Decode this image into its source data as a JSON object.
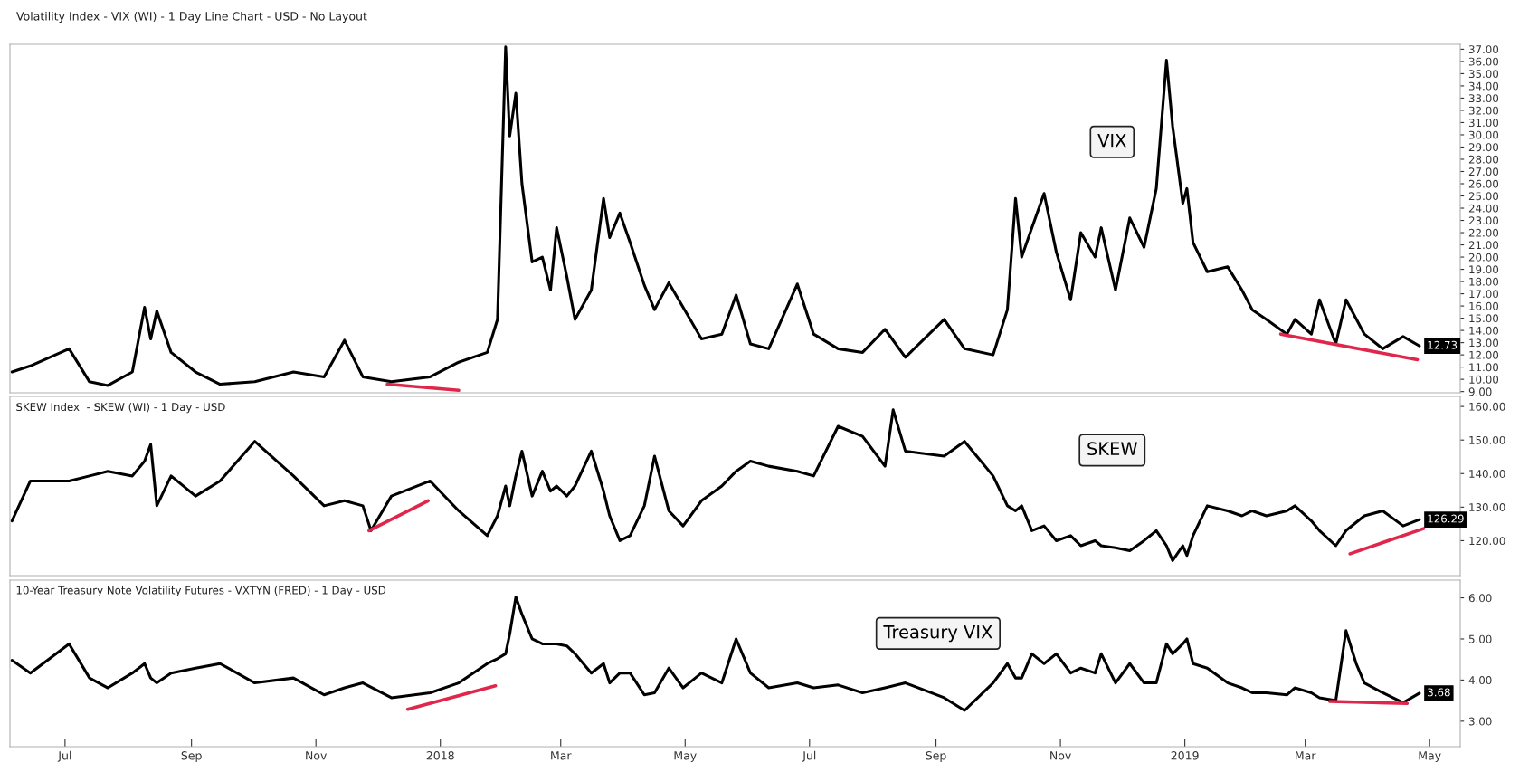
{
  "chart_data": [
    {
      "type": "line",
      "title": "Volatility Index - VIX (WI) - 1 Day Line Chart - USD - No Layout",
      "annotations": [
        "VIX"
      ],
      "xlim": [
        "2017-06-04",
        "2019-05-16"
      ],
      "ylim": [
        8.9,
        37.4
      ],
      "yticks": [
        {
          "value": 9,
          "label": "9.00"
        },
        {
          "value": 10,
          "label": "10.00"
        },
        {
          "value": 11,
          "label": "11.00"
        },
        {
          "value": 12,
          "label": "12.00"
        },
        {
          "value": 13,
          "label": "13.00"
        },
        {
          "value": 14,
          "label": "14.00"
        },
        {
          "value": 15,
          "label": "15.00"
        },
        {
          "value": 16,
          "label": "16.00"
        },
        {
          "value": 17,
          "label": "17.00"
        },
        {
          "value": 18,
          "label": "18.00"
        },
        {
          "value": 19,
          "label": "19.00"
        },
        {
          "value": 20,
          "label": "20.00"
        },
        {
          "value": 21,
          "label": "21.00"
        },
        {
          "value": 22,
          "label": "22.00"
        },
        {
          "value": 23,
          "label": "23.00"
        },
        {
          "value": 24,
          "label": "24.00"
        },
        {
          "value": 25,
          "label": "25.00"
        },
        {
          "value": 26,
          "label": "26.00"
        },
        {
          "value": 27,
          "label": "27.00"
        },
        {
          "value": 28,
          "label": "28.00"
        },
        {
          "value": 29,
          "label": "29.00"
        },
        {
          "value": 30,
          "label": "30.00"
        },
        {
          "value": 31,
          "label": "31.00"
        },
        {
          "value": 32,
          "label": "32.00"
        },
        {
          "value": 33,
          "label": "33.00"
        },
        {
          "value": 34,
          "label": "34.00"
        },
        {
          "value": 35,
          "label": "35.00"
        },
        {
          "value": 36,
          "label": "36.00"
        },
        {
          "value": 37,
          "label": "37.00"
        }
      ],
      "tick_labels": "y",
      "line_style": "solid",
      "x": [
        "2017-06-05",
        "2017-06-14",
        "2017-07-03",
        "2017-07-13",
        "2017-07-22",
        "2017-08-03",
        "2017-08-09",
        "2017-08-12",
        "2017-08-15",
        "2017-08-22",
        "2017-09-03",
        "2017-09-15",
        "2017-10-02",
        "2017-10-21",
        "2017-11-05",
        "2017-11-15",
        "2017-11-24",
        "2017-12-08",
        "2017-12-27",
        "2018-01-10",
        "2018-01-24",
        "2018-01-29",
        "2018-02-02",
        "2018-02-04",
        "2018-02-07",
        "2018-02-10",
        "2018-02-15",
        "2018-02-20",
        "2018-02-24",
        "2018-02-27",
        "2018-03-04",
        "2018-03-08",
        "2018-03-16",
        "2018-03-22",
        "2018-03-25",
        "2018-03-30",
        "2018-04-04",
        "2018-04-11",
        "2018-04-16",
        "2018-04-23",
        "2018-04-30",
        "2018-05-09",
        "2018-05-19",
        "2018-05-26",
        "2018-06-02",
        "2018-06-11",
        "2018-06-25",
        "2018-07-03",
        "2018-07-15",
        "2018-07-27",
        "2018-08-07",
        "2018-08-17",
        "2018-09-05",
        "2018-09-15",
        "2018-09-29",
        "2018-10-06",
        "2018-10-10",
        "2018-10-13",
        "2018-10-18",
        "2018-10-24",
        "2018-10-30",
        "2018-11-06",
        "2018-11-11",
        "2018-11-18",
        "2018-11-21",
        "2018-11-28",
        "2018-12-05",
        "2018-12-12",
        "2018-12-18",
        "2018-12-23",
        "2018-12-26",
        "2018-12-31",
        "2019-01-02",
        "2019-01-05",
        "2019-01-12",
        "2019-01-22",
        "2019-01-29",
        "2019-02-03",
        "2019-02-10",
        "2019-02-20",
        "2019-02-24",
        "2019-03-04",
        "2019-03-08",
        "2019-03-16",
        "2019-03-21",
        "2019-03-30",
        "2019-04-08",
        "2019-04-18",
        "2019-04-26"
      ],
      "series": [
        {
          "color": "#000000",
          "values": [
            10.6,
            11.1,
            12.5,
            9.8,
            9.5,
            10.6,
            15.9,
            13.3,
            15.6,
            12.2,
            10.6,
            9.6,
            9.8,
            10.6,
            10.2,
            13.2,
            10.2,
            9.8,
            10.2,
            11.4,
            12.2,
            14.9,
            37.2,
            29.9,
            33.4,
            26.0,
            19.6,
            20.0,
            17.3,
            22.4,
            18.4,
            14.9,
            17.3,
            24.8,
            21.6,
            23.6,
            21.2,
            17.7,
            15.7,
            17.9,
            15.9,
            13.3,
            13.7,
            16.9,
            12.9,
            12.5,
            17.8,
            13.7,
            12.5,
            12.2,
            14.1,
            11.8,
            14.9,
            12.5,
            12.0,
            15.7,
            24.8,
            20.0,
            22.4,
            25.2,
            20.4,
            16.5,
            22.0,
            20.0,
            22.4,
            17.3,
            23.2,
            20.8,
            25.6,
            36.1,
            30.7,
            24.4,
            25.6,
            21.2,
            18.8,
            19.2,
            17.3,
            15.7,
            14.9,
            13.7,
            14.9,
            13.7,
            16.5,
            12.9,
            16.5,
            13.7,
            12.5,
            13.5,
            12.73
          ],
          "value_labels": [
            null,
            null,
            null,
            null,
            null,
            null,
            null,
            null,
            null,
            null,
            null,
            null,
            null,
            null,
            null,
            null,
            null,
            null,
            null,
            null,
            null,
            null,
            null,
            null,
            null,
            null,
            null,
            null,
            null,
            null,
            null,
            null,
            null,
            null,
            null,
            null,
            null,
            null,
            null,
            null,
            null,
            null,
            null,
            null,
            null,
            null,
            null,
            null,
            null,
            null,
            null,
            null,
            null,
            null,
            null,
            null,
            null,
            null,
            null,
            null,
            null,
            null,
            null,
            null,
            null,
            null,
            null,
            null,
            null,
            null,
            null,
            null,
            null,
            null,
            null,
            null,
            null,
            null,
            null,
            null,
            null,
            null,
            null,
            null,
            null,
            null,
            null,
            null,
            "12.73"
          ]
        },
        {
          "type": "line",
          "color": "#e0264a",
          "x": [
            "2017-12-06",
            "2018-01-10"
          ],
          "values": [
            9.6,
            9.1
          ]
        },
        {
          "type": "line",
          "color": "#e0264a",
          "x": [
            "2019-02-17",
            "2019-04-25"
          ],
          "values": [
            13.7,
            11.6
          ]
        }
      ]
    },
    {
      "type": "line",
      "title": "SKEW Index  - SKEW (WI) - 1 Day - USD",
      "annotations": [
        "SKEW"
      ],
      "xlim": [
        "2017-06-04",
        "2019-05-16"
      ],
      "ylim": [
        109.6,
        163
      ],
      "yticks": [
        {
          "value": 120,
          "label": "120.00"
        },
        {
          "value": 130,
          "label": "130.00"
        },
        {
          "value": 140,
          "label": "140.00"
        },
        {
          "value": 150,
          "label": "150.00"
        },
        {
          "value": 160,
          "label": "160.00"
        }
      ],
      "tick_labels": "y",
      "line_style": "solid",
      "x": [
        "2017-06-05",
        "2017-06-14",
        "2017-07-03",
        "2017-07-13",
        "2017-07-22",
        "2017-08-03",
        "2017-08-09",
        "2017-08-12",
        "2017-08-15",
        "2017-08-22",
        "2017-09-03",
        "2017-09-15",
        "2017-10-02",
        "2017-10-21",
        "2017-11-05",
        "2017-11-15",
        "2017-11-24",
        "2017-11-28",
        "2017-12-08",
        "2017-12-27",
        "2018-01-10",
        "2018-01-24",
        "2018-01-29",
        "2018-02-02",
        "2018-02-04",
        "2018-02-07",
        "2018-02-10",
        "2018-02-15",
        "2018-02-20",
        "2018-02-24",
        "2018-02-27",
        "2018-03-04",
        "2018-03-08",
        "2018-03-16",
        "2018-03-22",
        "2018-03-25",
        "2018-03-30",
        "2018-04-04",
        "2018-04-11",
        "2018-04-16",
        "2018-04-23",
        "2018-04-30",
        "2018-05-09",
        "2018-05-19",
        "2018-05-26",
        "2018-06-02",
        "2018-06-11",
        "2018-06-25",
        "2018-07-03",
        "2018-07-15",
        "2018-07-27",
        "2018-08-07",
        "2018-08-11",
        "2018-08-17",
        "2018-09-05",
        "2018-09-15",
        "2018-09-29",
        "2018-10-06",
        "2018-10-10",
        "2018-10-13",
        "2018-10-18",
        "2018-10-24",
        "2018-10-30",
        "2018-11-06",
        "2018-11-11",
        "2018-11-18",
        "2018-11-21",
        "2018-11-28",
        "2018-12-05",
        "2018-12-12",
        "2018-12-18",
        "2018-12-23",
        "2018-12-26",
        "2018-12-31",
        "2019-01-02",
        "2019-01-05",
        "2019-01-12",
        "2019-01-22",
        "2019-01-29",
        "2019-02-03",
        "2019-02-10",
        "2019-02-20",
        "2019-02-24",
        "2019-03-04",
        "2019-03-08",
        "2019-03-16",
        "2019-03-21",
        "2019-03-30",
        "2019-04-08",
        "2019-04-18",
        "2019-04-26"
      ],
      "series": [
        {
          "color": "#000000",
          "values": [
            125.9,
            137.8,
            137.8,
            139.3,
            140.7,
            139.3,
            143.7,
            148.7,
            130.4,
            139.3,
            133.3,
            137.8,
            149.6,
            139.3,
            130.4,
            131.9,
            130.4,
            123.0,
            133.3,
            137.8,
            128.9,
            121.5,
            127.4,
            136.3,
            130.4,
            139.3,
            146.7,
            133.3,
            140.7,
            134.8,
            136.3,
            133.3,
            136.3,
            146.7,
            134.8,
            127.4,
            120.0,
            121.5,
            130.4,
            145.2,
            128.9,
            124.4,
            131.9,
            136.3,
            140.7,
            143.7,
            142.2,
            140.7,
            139.3,
            154.1,
            151.1,
            142.2,
            159.0,
            146.7,
            145.2,
            149.6,
            139.3,
            130.4,
            128.9,
            130.4,
            123.0,
            124.4,
            120.0,
            121.5,
            118.5,
            120.0,
            118.5,
            117.9,
            117.0,
            120.0,
            123.0,
            118.5,
            114.1,
            118.5,
            115.6,
            121.5,
            130.4,
            128.9,
            127.4,
            128.9,
            127.4,
            128.9,
            130.4,
            125.9,
            123.0,
            118.5,
            123.0,
            127.4,
            128.9,
            124.4,
            126.29
          ],
          "value_labels": [
            null,
            null,
            null,
            null,
            null,
            null,
            null,
            null,
            null,
            null,
            null,
            null,
            null,
            null,
            null,
            null,
            null,
            null,
            null,
            null,
            null,
            null,
            null,
            null,
            null,
            null,
            null,
            null,
            null,
            null,
            null,
            null,
            null,
            null,
            null,
            null,
            null,
            null,
            null,
            null,
            null,
            null,
            null,
            null,
            null,
            null,
            null,
            null,
            null,
            null,
            null,
            null,
            null,
            null,
            null,
            null,
            null,
            null,
            null,
            null,
            null,
            null,
            null,
            null,
            null,
            null,
            null,
            null,
            null,
            null,
            null,
            null,
            null,
            null,
            null,
            null,
            null,
            null,
            null,
            null,
            null,
            null,
            null,
            null,
            null,
            null,
            null,
            null,
            null,
            null,
            "126.29"
          ]
        },
        {
          "type": "line",
          "color": "#e0264a",
          "x": [
            "2017-11-27",
            "2017-12-26"
          ],
          "values": [
            123.0,
            131.9
          ]
        },
        {
          "type": "line",
          "color": "#e0264a",
          "x": [
            "2019-03-23",
            "2019-04-28"
          ],
          "values": [
            116.1,
            123.6
          ]
        }
      ]
    },
    {
      "type": "line",
      "title": "10-Year Treasury Note Volatility Futures - VXTYN (FRED) - 1 Day - USD",
      "annotations": [
        "Treasury VIX"
      ],
      "xlim": [
        "2017-06-04",
        "2019-05-16"
      ],
      "ylim": [
        2.38,
        6.43
      ],
      "yticks": [
        {
          "value": 3,
          "label": "3.00"
        },
        {
          "value": 4,
          "label": "4.00"
        },
        {
          "value": 5,
          "label": "5.00"
        },
        {
          "value": 6,
          "label": "6.00"
        }
      ],
      "xticks": [
        {
          "value": "2017-07-01",
          "label": "Jul"
        },
        {
          "value": "2017-09-01",
          "label": "Sep"
        },
        {
          "value": "2017-11-01",
          "label": "Nov"
        },
        {
          "value": "2018-01-01",
          "label": "2018"
        },
        {
          "value": "2018-03-01",
          "label": "Mar"
        },
        {
          "value": "2018-05-01",
          "label": "May"
        },
        {
          "value": "2018-07-01",
          "label": "Jul"
        },
        {
          "value": "2018-09-01",
          "label": "Sep"
        },
        {
          "value": "2018-11-01",
          "label": "Nov"
        },
        {
          "value": "2019-01-01",
          "label": "2019"
        },
        {
          "value": "2019-03-01",
          "label": "Mar"
        },
        {
          "value": "2019-05-01",
          "label": "May"
        }
      ],
      "line_style": "solid",
      "x": [
        "2017-06-05",
        "2017-06-14",
        "2017-07-03",
        "2017-07-13",
        "2017-07-22",
        "2017-08-03",
        "2017-08-09",
        "2017-08-12",
        "2017-08-15",
        "2017-08-22",
        "2017-09-03",
        "2017-09-15",
        "2017-10-02",
        "2017-10-21",
        "2017-11-05",
        "2017-11-15",
        "2017-11-24",
        "2017-12-08",
        "2017-12-27",
        "2018-01-10",
        "2018-01-24",
        "2018-01-29",
        "2018-02-02",
        "2018-02-04",
        "2018-02-07",
        "2018-02-10",
        "2018-02-15",
        "2018-02-20",
        "2018-02-24",
        "2018-02-27",
        "2018-03-04",
        "2018-03-08",
        "2018-03-16",
        "2018-03-22",
        "2018-03-25",
        "2018-03-30",
        "2018-04-04",
        "2018-04-11",
        "2018-04-16",
        "2018-04-23",
        "2018-04-30",
        "2018-05-09",
        "2018-05-19",
        "2018-05-26",
        "2018-06-02",
        "2018-06-11",
        "2018-06-25",
        "2018-07-03",
        "2018-07-15",
        "2018-07-27",
        "2018-08-07",
        "2018-08-17",
        "2018-09-05",
        "2018-09-15",
        "2018-09-29",
        "2018-10-06",
        "2018-10-10",
        "2018-10-13",
        "2018-10-18",
        "2018-10-24",
        "2018-10-30",
        "2018-11-06",
        "2018-11-11",
        "2018-11-18",
        "2018-11-21",
        "2018-11-28",
        "2018-12-05",
        "2018-12-12",
        "2018-12-18",
        "2018-12-23",
        "2018-12-26",
        "2018-12-31",
        "2019-01-02",
        "2019-01-05",
        "2019-01-12",
        "2019-01-22",
        "2019-01-29",
        "2019-02-03",
        "2019-02-10",
        "2019-02-20",
        "2019-02-24",
        "2019-03-04",
        "2019-03-08",
        "2019-03-16",
        "2019-03-21",
        "2019-03-26",
        "2019-03-30",
        "2019-04-08",
        "2019-04-18",
        "2019-04-26"
      ],
      "series": [
        {
          "color": "#000000",
          "values": [
            4.48,
            4.17,
            4.88,
            4.05,
            3.81,
            4.17,
            4.4,
            4.05,
            3.93,
            4.17,
            4.29,
            4.4,
            3.93,
            4.05,
            3.64,
            3.81,
            3.93,
            3.57,
            3.69,
            3.93,
            4.4,
            4.52,
            4.64,
            5.12,
            6.02,
            5.6,
            5.0,
            4.88,
            4.88,
            4.88,
            4.83,
            4.64,
            4.17,
            4.4,
            3.93,
            4.17,
            4.17,
            3.64,
            3.69,
            4.29,
            3.81,
            4.17,
            3.93,
            5.0,
            4.17,
            3.81,
            3.93,
            3.81,
            3.88,
            3.69,
            3.81,
            3.93,
            3.57,
            3.26,
            3.93,
            4.4,
            4.05,
            4.05,
            4.64,
            4.4,
            4.64,
            4.17,
            4.29,
            4.17,
            4.64,
            3.93,
            4.4,
            3.93,
            3.93,
            4.88,
            4.64,
            4.88,
            5.0,
            4.4,
            4.29,
            3.93,
            3.81,
            3.69,
            3.69,
            3.64,
            3.81,
            3.69,
            3.57,
            3.5,
            5.2,
            4.4,
            3.93,
            3.69,
            3.45,
            3.68
          ],
          "value_labels": [
            null,
            null,
            null,
            null,
            null,
            null,
            null,
            null,
            null,
            null,
            null,
            null,
            null,
            null,
            null,
            null,
            null,
            null,
            null,
            null,
            null,
            null,
            null,
            null,
            null,
            null,
            null,
            null,
            null,
            null,
            null,
            null,
            null,
            null,
            null,
            null,
            null,
            null,
            null,
            null,
            null,
            null,
            null,
            null,
            null,
            null,
            null,
            null,
            null,
            null,
            null,
            null,
            null,
            null,
            null,
            null,
            null,
            null,
            null,
            null,
            null,
            null,
            null,
            null,
            null,
            null,
            null,
            null,
            null,
            null,
            null,
            null,
            null,
            null,
            null,
            null,
            null,
            null,
            null,
            null,
            null,
            null,
            null,
            null,
            null,
            null,
            null,
            null,
            null,
            "3.68"
          ]
        },
        {
          "type": "line",
          "color": "#e0264a",
          "x": [
            "2017-12-16",
            "2018-01-28"
          ],
          "values": [
            3.29,
            3.86
          ]
        },
        {
          "type": "line",
          "color": "#e0264a",
          "x": [
            "2019-03-13",
            "2019-04-20"
          ],
          "values": [
            3.48,
            3.43
          ]
        }
      ]
    }
  ]
}
